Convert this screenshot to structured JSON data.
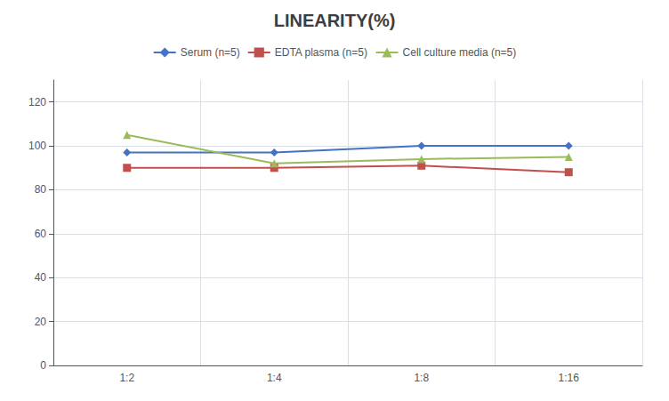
{
  "chart_data": {
    "type": "line",
    "title": "LINEARITY(%)",
    "categories": [
      "1:2",
      "1:4",
      "1:8",
      "1:16"
    ],
    "series": [
      {
        "name": "Serum (n=5)",
        "color": "#4472C4",
        "marker": "diamond",
        "values": [
          97,
          97,
          100,
          100
        ]
      },
      {
        "name": "EDTA plasma (n=5)",
        "color": "#C0504D",
        "marker": "square",
        "values": [
          90,
          90,
          91,
          88
        ]
      },
      {
        "name": "Cell culture media (n=5)",
        "color": "#9BBB59",
        "marker": "triangle",
        "values": [
          105,
          92,
          94,
          95
        ]
      }
    ],
    "ylim": [
      0,
      130
    ],
    "yticks": [
      0,
      20,
      40,
      60,
      80,
      100,
      120
    ],
    "grid": true,
    "legend": "top"
  }
}
